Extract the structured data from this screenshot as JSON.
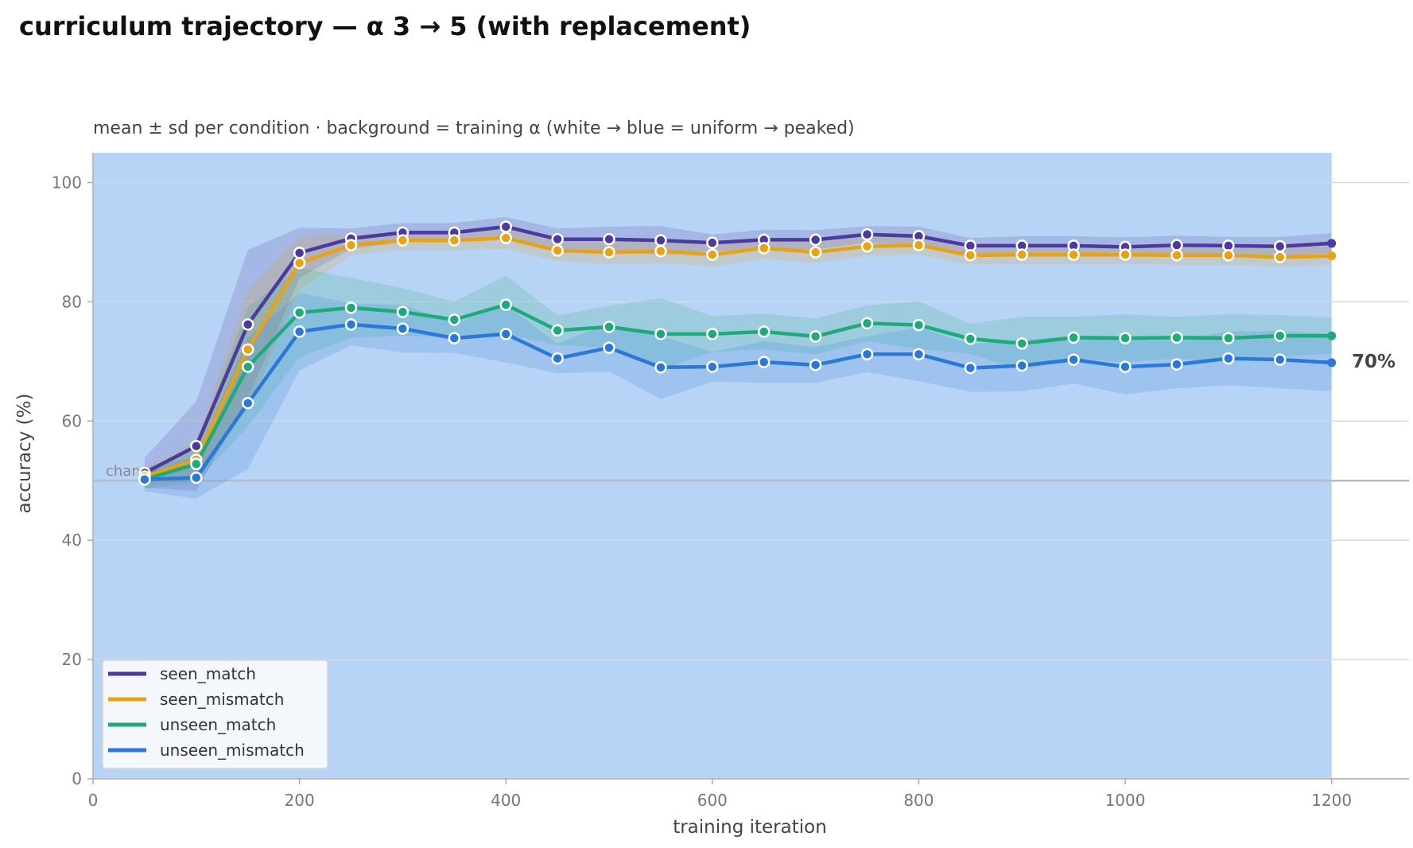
{
  "title": "curriculum trajectory — α 3 → 5 (with replacement)",
  "subtitle": "mean ± sd per condition · background = training α (white → blue = uniform → peaked)",
  "chart_data": {
    "type": "line",
    "xlabel": "training iteration",
    "ylabel": "accuracy (%)",
    "xlim": [
      0,
      1275
    ],
    "ylim": [
      0,
      105
    ],
    "x_ticks": [
      0,
      200,
      400,
      600,
      800,
      1000,
      1200
    ],
    "y_ticks": [
      0,
      20,
      40,
      60,
      80,
      100
    ],
    "grid": "horizontal",
    "background_color": "#b7d3f5",
    "chance_line": {
      "value": 50,
      "label": "chance"
    },
    "end_label": "70%",
    "legend_position": "lower-left",
    "x": [
      50,
      100,
      150,
      200,
      250,
      300,
      350,
      400,
      450,
      500,
      550,
      600,
      650,
      700,
      750,
      800,
      850,
      900,
      950,
      1000,
      1050,
      1100,
      1150,
      1200
    ],
    "series": [
      {
        "name": "seen_match",
        "color": "#4c3aa1",
        "values": [
          51.3,
          55.8,
          76.2,
          88.2,
          90.6,
          91.6,
          91.6,
          92.6,
          90.5,
          90.5,
          90.3,
          89.9,
          90.4,
          90.4,
          91.3,
          91.0,
          89.4,
          89.4,
          89.4,
          89.2,
          89.5,
          89.4,
          89.3,
          89.8
        ],
        "sd": [
          2.5,
          7.5,
          12.5,
          4.2,
          1.7,
          1.6,
          1.6,
          1.6,
          1.8,
          2.1,
          2.4,
          1.4,
          1.7,
          1.6,
          1.4,
          1.6,
          1.3,
          1.6,
          1.6,
          1.6,
          1.6,
          1.5,
          1.6,
          1.7
        ]
      },
      {
        "name": "seen_mismatch",
        "color": "#e8a214",
        "values": [
          50.7,
          53.5,
          72.0,
          86.5,
          89.5,
          90.3,
          90.3,
          90.7,
          88.6,
          88.3,
          88.5,
          87.9,
          89.0,
          88.3,
          89.3,
          89.5,
          87.8,
          87.9,
          87.9,
          87.9,
          87.8,
          87.8,
          87.5,
          87.7
        ],
        "sd": [
          1.5,
          3.0,
          10.0,
          4.5,
          1.7,
          1.6,
          1.6,
          1.8,
          1.8,
          2.0,
          2.0,
          2.0,
          1.8,
          1.8,
          1.6,
          1.6,
          1.6,
          1.6,
          1.6,
          1.6,
          1.6,
          1.6,
          1.6,
          1.6
        ]
      },
      {
        "name": "unseen_match",
        "color": "#1faa7a",
        "values": [
          50.2,
          52.8,
          69.1,
          78.2,
          79.0,
          78.3,
          77.0,
          79.5,
          75.2,
          75.8,
          74.6,
          74.6,
          75.0,
          74.2,
          76.4,
          76.1,
          73.8,
          73.0,
          74.0,
          73.9,
          74.0,
          73.9,
          74.3,
          74.3
        ],
        "sd": [
          1.5,
          3.0,
          10.0,
          7.5,
          5.0,
          4.0,
          3.0,
          4.9,
          2.5,
          3.5,
          6.0,
          3.0,
          3.0,
          3.0,
          3.0,
          4.0,
          2.5,
          4.5,
          3.5,
          4.0,
          3.5,
          4.0,
          3.5,
          3.0
        ]
      },
      {
        "name": "unseen_mismatch",
        "color": "#2a78d8",
        "values": [
          50.2,
          50.5,
          63.0,
          75.0,
          76.2,
          75.5,
          73.9,
          74.6,
          70.5,
          72.3,
          69.0,
          69.1,
          69.9,
          69.4,
          71.2,
          71.2,
          68.9,
          69.3,
          70.3,
          69.1,
          69.5,
          70.5,
          70.3,
          69.8
        ],
        "sd": [
          2.0,
          3.5,
          11.0,
          6.5,
          3.5,
          4.0,
          2.5,
          4.8,
          2.5,
          4.0,
          5.3,
          2.5,
          3.5,
          3.0,
          3.0,
          4.5,
          4.0,
          4.3,
          4.0,
          4.6,
          4.0,
          4.5,
          4.8,
          4.8
        ]
      }
    ]
  }
}
